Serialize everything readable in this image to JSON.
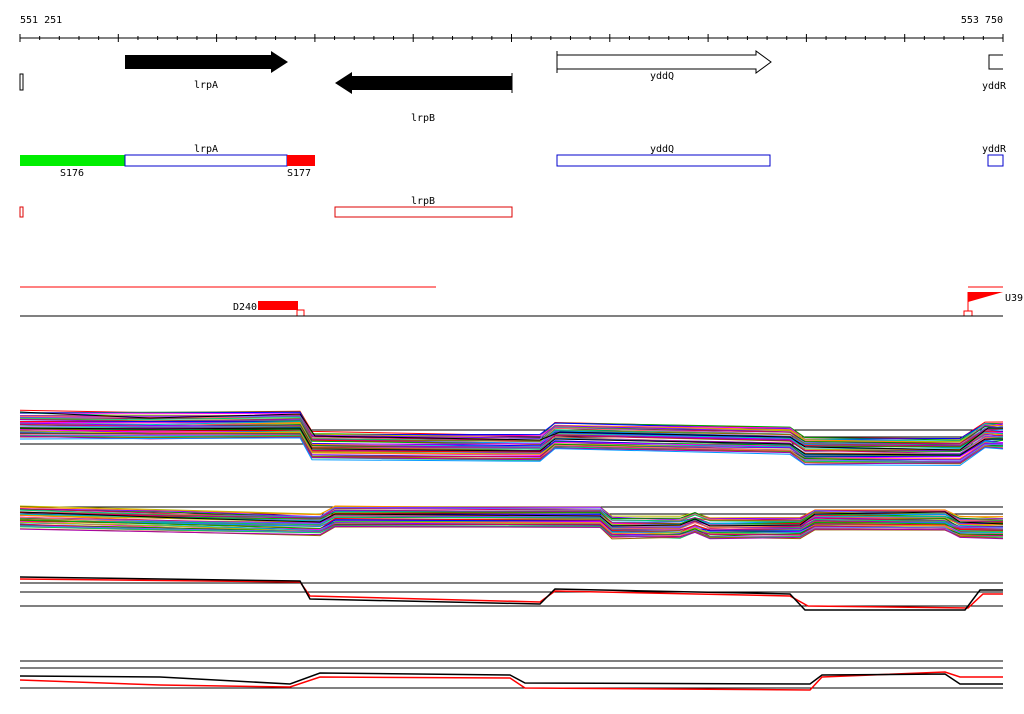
{
  "coords": {
    "start": "551 251",
    "end": "553 750"
  },
  "genes": [
    {
      "name": "lrpA",
      "strand": "+",
      "style": "filled"
    },
    {
      "name": "lrpB",
      "strand": "-",
      "style": "filled"
    },
    {
      "name": "yddQ",
      "strand": "+",
      "style": "open"
    },
    {
      "name": "yddR",
      "strand": "+",
      "style": "open"
    }
  ],
  "transcripts": {
    "forward_labels": [
      "lrpA",
      "yddQ",
      "yddR"
    ],
    "reverse_labels": [
      "lrpB"
    ],
    "segments": [
      {
        "name": "S176",
        "color": "#00ee00"
      },
      {
        "name": "S177",
        "color": "#ff0000"
      }
    ]
  },
  "features": [
    {
      "name": "D240",
      "color": "#ff0000"
    },
    {
      "name": "U39",
      "color": "#ff0000"
    }
  ],
  "colors": {
    "forward_outline": "#0000cc",
    "reverse_outline": "#dd0000",
    "accent": "#ff0000",
    "axis": "#000000"
  },
  "expression_tracks": [
    {
      "kind": "multi-series"
    },
    {
      "kind": "multi-series"
    },
    {
      "kind": "paired",
      "series": [
        "black",
        "red"
      ]
    },
    {
      "kind": "paired",
      "series": [
        "black",
        "red"
      ]
    }
  ]
}
